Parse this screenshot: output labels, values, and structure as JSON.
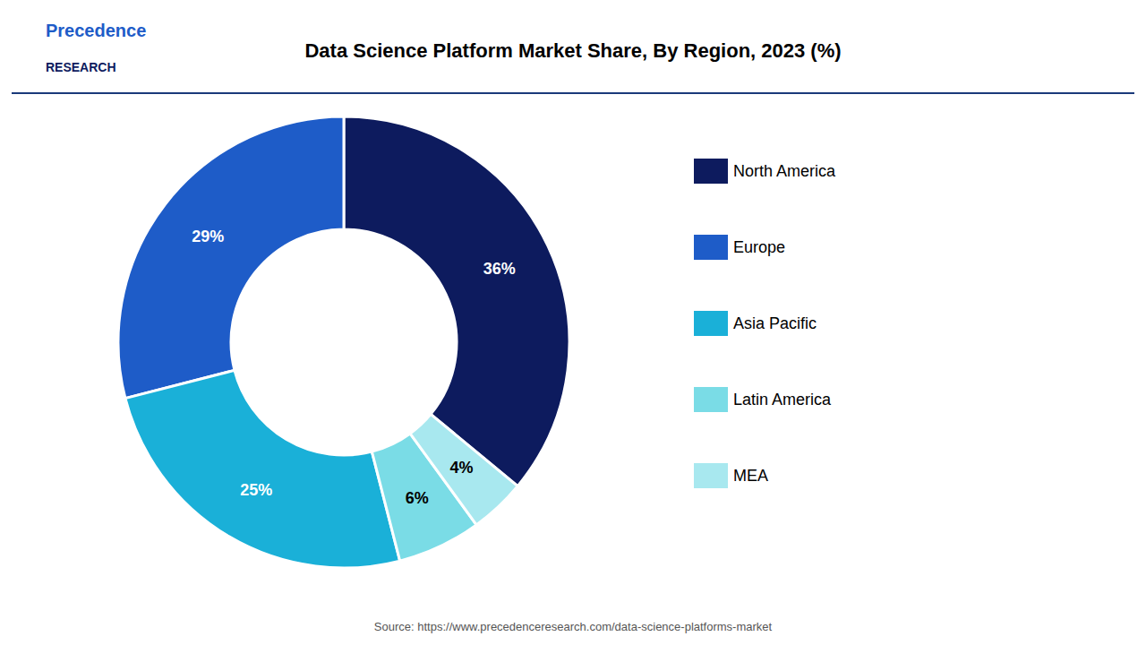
{
  "chart_data": {
    "type": "donut",
    "title": "Data Science Platform Market Share, By Region, 2023 (%)",
    "categories": [
      "North America",
      "Europe",
      "Asia Pacific",
      "Latin America",
      "MEA"
    ],
    "values": [
      36,
      29,
      25,
      6,
      4
    ],
    "value_labels": [
      "36%",
      "29%",
      "25%",
      "6%",
      "4%"
    ],
    "colors": [
      "#0d1b5e",
      "#1e5cc8",
      "#1ab0d8",
      "#7adce6",
      "#a8e8ef"
    ],
    "data_labels": true,
    "legend": "right",
    "annotations": [
      "Precedence",
      "RESEARCH",
      "Source: https://www.precedenceresearch.com/data-science-platforms-market"
    ]
  }
}
